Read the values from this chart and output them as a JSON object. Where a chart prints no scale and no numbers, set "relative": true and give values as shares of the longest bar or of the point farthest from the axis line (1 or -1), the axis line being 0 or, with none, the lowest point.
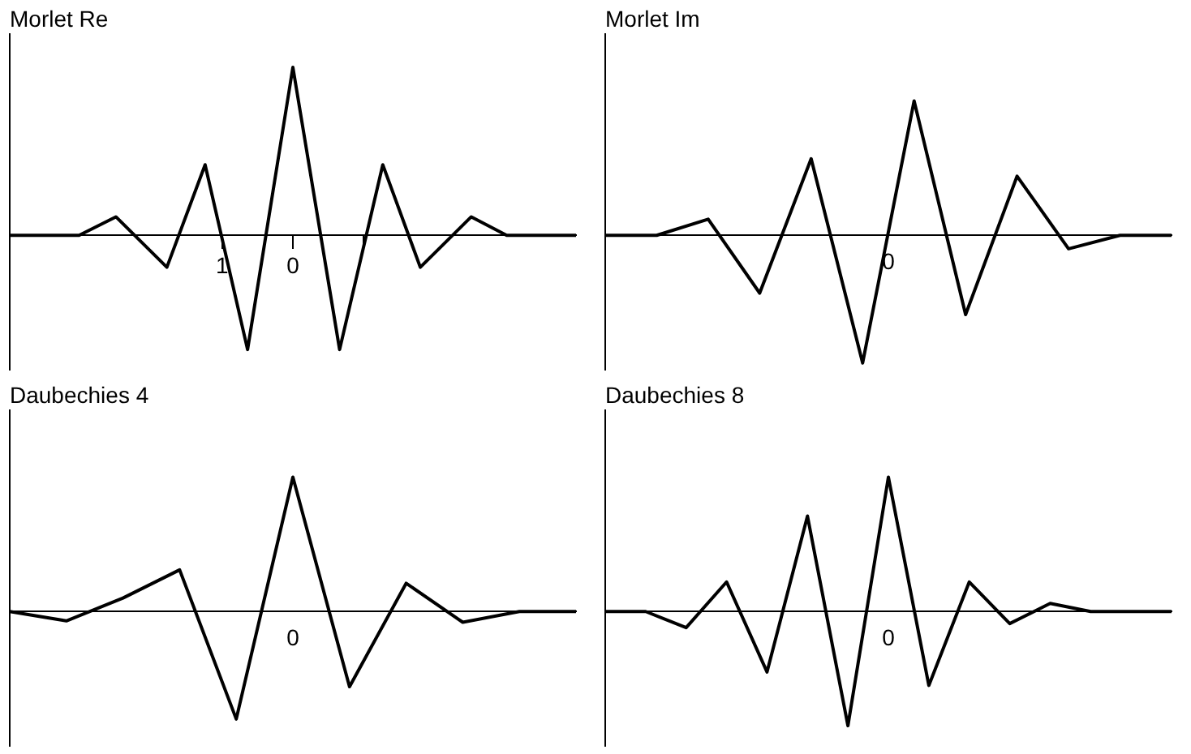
{
  "chart_data": [
    {
      "type": "line",
      "title": "Morlet Re",
      "relative": true,
      "color": "#000000",
      "xlim": [
        -4.0,
        4.0
      ],
      "xticks": [
        {
          "value": -1,
          "label": "1"
        },
        {
          "value": 0,
          "label": "0"
        },
        {
          "value": 1,
          "label": null
        }
      ],
      "x": [
        -4.0,
        -3.02,
        -2.5,
        -1.78,
        -1.24,
        -0.64,
        0,
        0.66,
        1.27,
        1.8,
        2.52,
        3.02,
        4.0
      ],
      "values": [
        0,
        0,
        0.11,
        -0.19,
        0.42,
        -0.68,
        1,
        -0.68,
        0.42,
        -0.19,
        0.11,
        0,
        0
      ]
    },
    {
      "type": "line",
      "title": "Morlet Im",
      "relative": true,
      "color": "#000000",
      "annotations": [
        "0"
      ],
      "categories": [
        null,
        null,
        null,
        null,
        null,
        null,
        null,
        null,
        null,
        null,
        null,
        null
      ],
      "values": [
        0,
        0,
        0.12,
        -0.43,
        0.57,
        -0.95,
        1,
        -0.59,
        0.44,
        -0.1,
        0,
        0
      ]
    },
    {
      "type": "line",
      "title": "Daubechies 4",
      "relative": true,
      "color": "#000000",
      "annotations": [
        "0"
      ],
      "categories": [
        null,
        null,
        null,
        null,
        null,
        null,
        null,
        null,
        null,
        null,
        null
      ],
      "values": [
        0,
        -0.07,
        0.1,
        0.31,
        -0.8,
        1,
        -0.56,
        0.21,
        -0.08,
        0,
        0
      ]
    },
    {
      "type": "line",
      "title": "Daubechies 8",
      "relative": true,
      "color": "#000000",
      "annotations": [
        "0"
      ],
      "categories": [
        null,
        null,
        null,
        null,
        null,
        null,
        null,
        null,
        null,
        null,
        null,
        null,
        null,
        null,
        null
      ],
      "values": [
        0,
        0,
        -0.12,
        0.22,
        -0.45,
        0.71,
        -0.85,
        1,
        -0.55,
        0.22,
        -0.09,
        0.06,
        0,
        0,
        0
      ]
    }
  ]
}
